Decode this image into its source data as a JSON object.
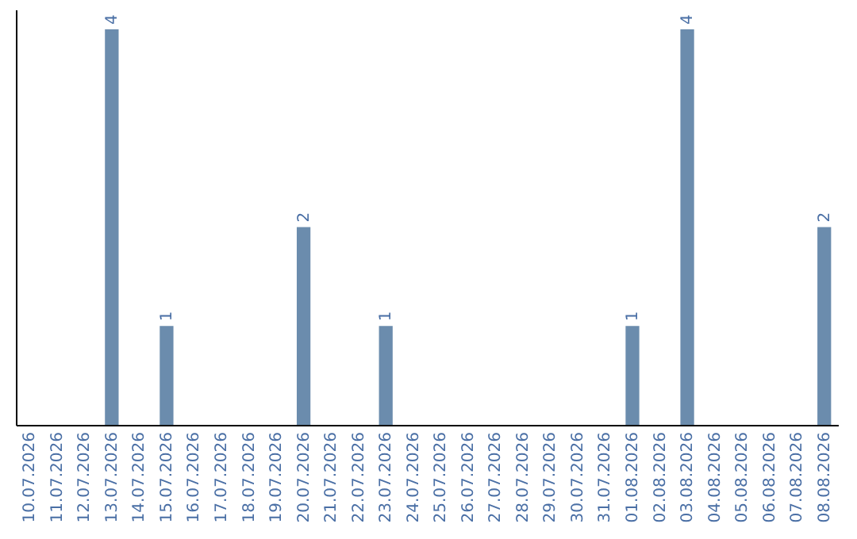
{
  "chart_data": {
    "type": "bar",
    "categories": [
      "10.07.2026",
      "11.07.2026",
      "12.07.2026",
      "13.07.2026",
      "14.07.2026",
      "15.07.2026",
      "16.07.2026",
      "17.07.2026",
      "18.07.2026",
      "19.07.2026",
      "20.07.2026",
      "21.07.2026",
      "22.07.2026",
      "23.07.2026",
      "24.07.2026",
      "25.07.2026",
      "26.07.2026",
      "27.07.2026",
      "28.07.2026",
      "29.07.2026",
      "30.07.2026",
      "31.07.2026",
      "01.08.2026",
      "02.08.2026",
      "03.08.2026",
      "04.08.2026",
      "05.08.2026",
      "06.08.2026",
      "07.08.2026",
      "08.08.2026"
    ],
    "values": [
      null,
      null,
      null,
      4,
      null,
      1,
      null,
      null,
      null,
      null,
      2,
      null,
      null,
      1,
      null,
      null,
      null,
      null,
      null,
      null,
      null,
      null,
      1,
      null,
      4,
      null,
      null,
      null,
      null,
      2
    ],
    "color": "#6b8cad",
    "ylim": [
      0,
      4.2
    ],
    "data_labels": true,
    "grid": false,
    "tick_labels": "x"
  }
}
